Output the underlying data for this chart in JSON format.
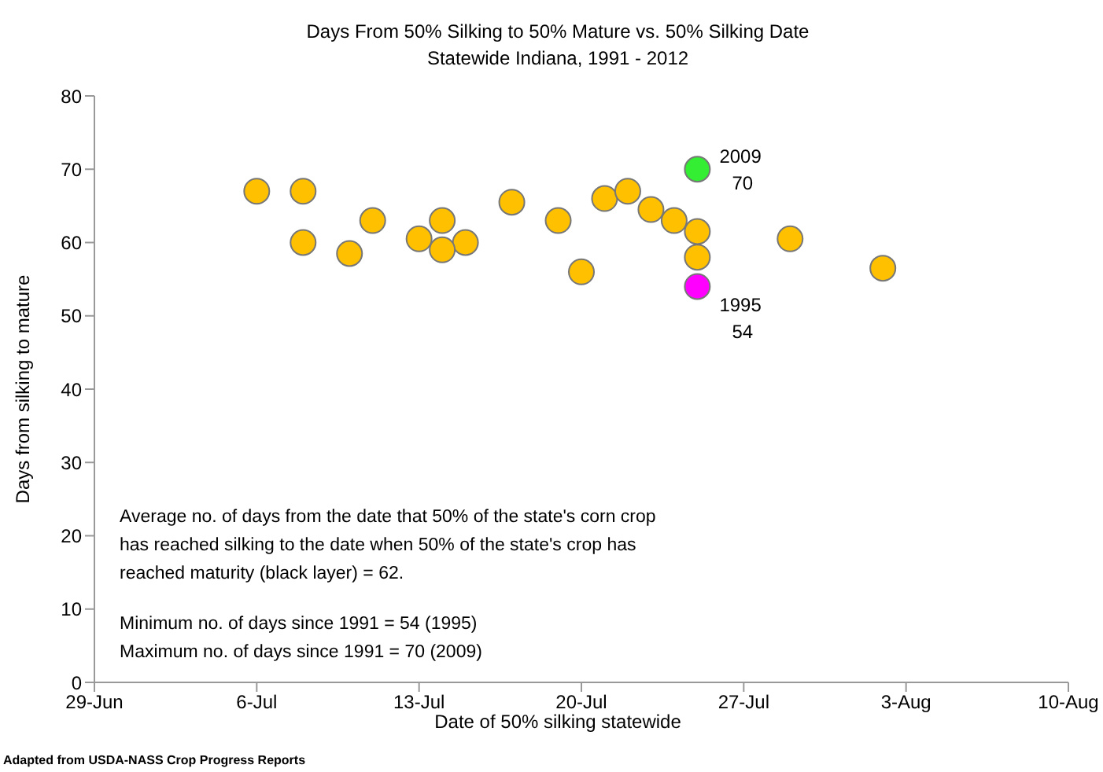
{
  "chart_data": {
    "type": "scatter",
    "title": "Days From 50% Silking to 50% Mature vs. 50% Silking Date",
    "subtitle": "Statewide Indiana, 1991 - 2012",
    "xlabel": "Date of 50% silking statewide",
    "ylabel": "Days from silking to mature",
    "x": [
      "--07-06",
      "--07-08",
      "--07-08",
      "--07-10",
      "--07-11",
      "--07-13",
      "--07-14",
      "--07-15",
      "--07-14",
      "--07-17",
      "--07-19",
      "--07-20",
      "--07-21",
      "--07-22",
      "--07-23",
      "--07-24",
      "--07-25",
      "--07-25",
      "--07-25",
      "--07-25",
      "--07-29",
      "--08-02"
    ],
    "values": [
      67,
      67,
      60,
      58.5,
      63,
      60.5,
      63,
      60,
      59,
      65.5,
      63,
      56,
      66,
      67,
      64.5,
      63,
      61.5,
      58,
      70,
      54,
      60.5,
      56.5
    ],
    "colors": [
      "#ffc000",
      "#ffc000",
      "#ffc000",
      "#ffc000",
      "#ffc000",
      "#ffc000",
      "#ffc000",
      "#ffc000",
      "#ffc000",
      "#ffc000",
      "#ffc000",
      "#ffc000",
      "#ffc000",
      "#ffc000",
      "#ffc000",
      "#ffc000",
      "#ffc000",
      "#ffc000",
      "#33ee33",
      "#ff00ff",
      "#ffc000",
      "#ffc000"
    ],
    "xlim": [
      "--06-29",
      "--08-10"
    ],
    "xticks": [
      {
        "value": "--06-29",
        "label": "29-Jun"
      },
      {
        "value": "--07-06",
        "label": "6-Jul"
      },
      {
        "value": "--07-13",
        "label": "13-Jul"
      },
      {
        "value": "--07-20",
        "label": "20-Jul"
      },
      {
        "value": "--07-27",
        "label": "27-Jul"
      },
      {
        "value": "--08-03",
        "label": "3-Aug"
      },
      {
        "value": "--08-10",
        "label": "10-Aug"
      }
    ],
    "ylim": [
      0,
      80
    ],
    "yticks": [
      0,
      10,
      20,
      30,
      40,
      50,
      60,
      70,
      80
    ],
    "marker": "circle",
    "grid": false,
    "legend": false,
    "annotations": [
      {
        "text": "2009\n70",
        "x": "--07-25",
        "y": 70
      },
      {
        "text": "1995\n54",
        "x": "--07-25",
        "y": 54
      },
      "Average no. of days from the date that 50% of the state's corn crop has reached silking to the date when 50% of the state's crop has reached maturity (black layer) = 62.",
      "Minimum no. of days since 1991 = 54 (1995)",
      "Maximum no. of days since 1991 = 70 (2009)",
      "Adapted from USDA-NASS Crop Progress Reports"
    ]
  }
}
